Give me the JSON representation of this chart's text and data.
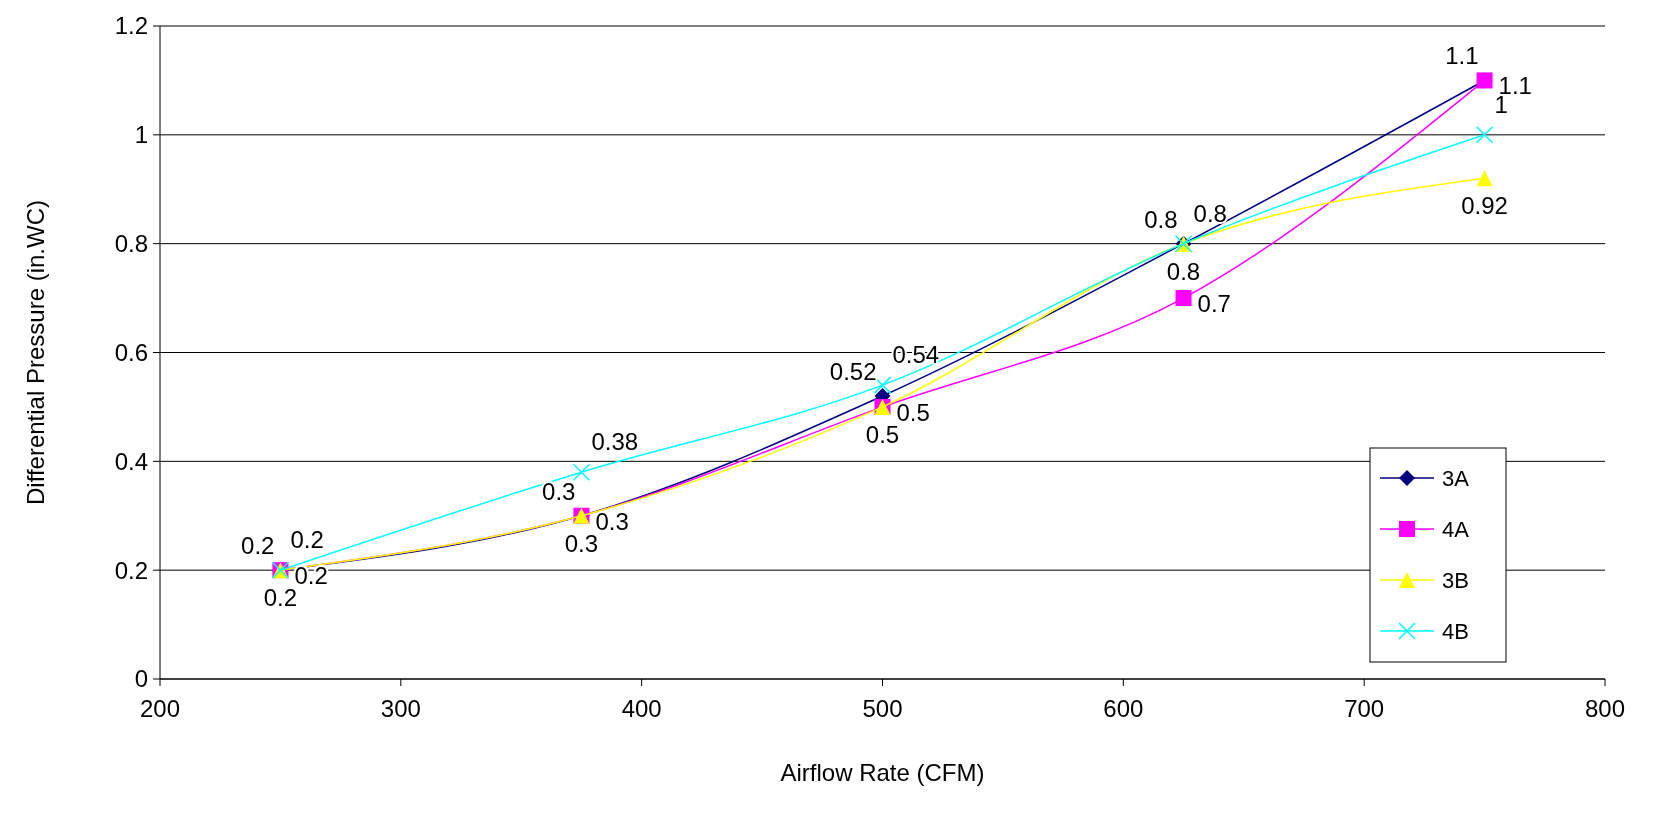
{
  "chart_data": {
    "type": "line",
    "xlabel": "Airflow Rate (CFM)",
    "ylabel": "Differential Pressure (in.WC)",
    "xlim": [
      200,
      800
    ],
    "xticks": [
      200,
      300,
      400,
      500,
      600,
      700,
      800
    ],
    "ylim": [
      0,
      1.2
    ],
    "yticks": [
      0,
      0.2,
      0.4,
      0.6,
      0.8,
      1,
      1.2
    ],
    "grid": "y",
    "legend": "bottom right",
    "data_labels": true,
    "x": [
      250,
      375,
      500,
      625,
      750
    ],
    "series": [
      {
        "name": "3A",
        "color": "#000080",
        "marker": "diamond",
        "values": [
          0.2,
          0.3,
          0.52,
          0.8,
          1.1
        ]
      },
      {
        "name": "4A",
        "color": "#ff00ff",
        "marker": "square",
        "values": [
          0.2,
          0.3,
          0.5,
          0.7,
          1.1
        ]
      },
      {
        "name": "3B",
        "color": "#ffff00",
        "marker": "triangle",
        "values": [
          0.2,
          0.3,
          0.5,
          0.8,
          0.92
        ]
      },
      {
        "name": "4B",
        "color": "#00ffff",
        "marker": "cross",
        "values": [
          0.2,
          0.38,
          0.54,
          0.8,
          1
        ]
      }
    ]
  }
}
